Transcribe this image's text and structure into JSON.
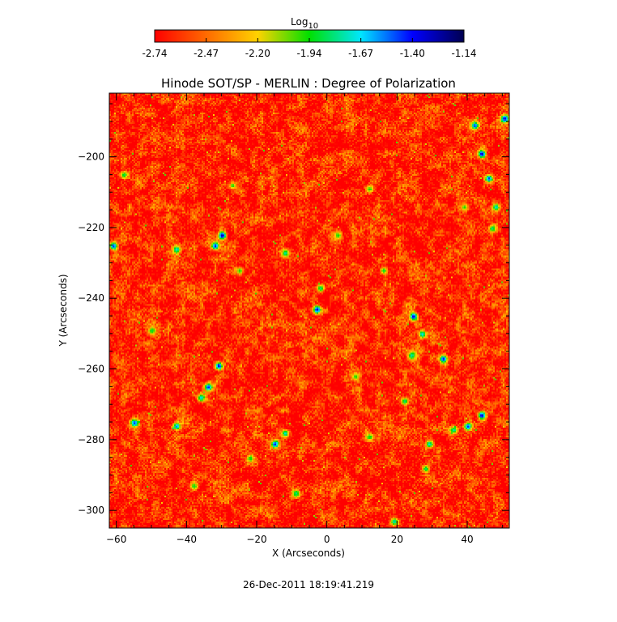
{
  "chart_data": {
    "type": "heatmap",
    "title": "Hinode SOT/SP - MERLIN : Degree of Polarization",
    "xlabel": "X (Arcseconds)",
    "ylabel": "Y (Arcseconds)",
    "xlim": [
      -62,
      52
    ],
    "ylim": [
      -305,
      -182
    ],
    "x_ticks": [
      -60,
      -40,
      -20,
      0,
      20,
      40
    ],
    "y_ticks": [
      -200,
      -220,
      -240,
      -260,
      -280,
      -300
    ],
    "colorbar": {
      "label_main": "Log",
      "label_sub": "10",
      "range": [
        -2.74,
        -1.14
      ],
      "tick_values": [
        "-2.74",
        "-2.47",
        "-2.20",
        "-1.94",
        "-1.67",
        "-1.40",
        "-1.14"
      ],
      "colormap": [
        "#ff0000",
        "#ff6a00",
        "#ffd200",
        "#00e000",
        "#00e6ff",
        "#0000ff",
        "#000050"
      ]
    },
    "background_value": -2.65,
    "features": [
      {
        "x": 50.5,
        "y": -189,
        "value": -1.35
      },
      {
        "x": 42,
        "y": -191,
        "value": -1.45
      },
      {
        "x": 44,
        "y": -199,
        "value": -1.3
      },
      {
        "x": 46,
        "y": -206,
        "value": -1.45
      },
      {
        "x": 48,
        "y": -214,
        "value": -1.7
      },
      {
        "x": 47,
        "y": -220,
        "value": -1.8
      },
      {
        "x": -30,
        "y": -222,
        "value": -1.25
      },
      {
        "x": -32,
        "y": -225,
        "value": -1.4
      },
      {
        "x": -61,
        "y": -225,
        "value": -1.45
      },
      {
        "x": -43,
        "y": -226,
        "value": -1.7
      },
      {
        "x": -12,
        "y": -227,
        "value": -1.75
      },
      {
        "x": -2,
        "y": -237,
        "value": -1.8
      },
      {
        "x": -3,
        "y": -243,
        "value": -1.35
      },
      {
        "x": 24.5,
        "y": -245,
        "value": -1.35
      },
      {
        "x": 27,
        "y": -250,
        "value": -1.65
      },
      {
        "x": 33,
        "y": -257,
        "value": -1.4
      },
      {
        "x": 24,
        "y": -256,
        "value": -1.75
      },
      {
        "x": -31,
        "y": -259,
        "value": -1.35
      },
      {
        "x": -34,
        "y": -265,
        "value": -1.4
      },
      {
        "x": -36,
        "y": -268,
        "value": -1.7
      },
      {
        "x": 44,
        "y": -273,
        "value": -1.3
      },
      {
        "x": 40,
        "y": -276,
        "value": -1.45
      },
      {
        "x": 36,
        "y": -277,
        "value": -1.75
      },
      {
        "x": -55,
        "y": -275,
        "value": -1.45
      },
      {
        "x": -43,
        "y": -276,
        "value": -1.55
      },
      {
        "x": -15,
        "y": -281,
        "value": -1.4
      },
      {
        "x": -12,
        "y": -278,
        "value": -1.7
      },
      {
        "x": -22,
        "y": -285,
        "value": -1.9
      },
      {
        "x": 29,
        "y": -281,
        "value": -1.7
      },
      {
        "x": 28,
        "y": -288,
        "value": -1.85
      },
      {
        "x": 22,
        "y": -269,
        "value": -1.8
      },
      {
        "x": 12,
        "y": -279,
        "value": -1.9
      },
      {
        "x": -38,
        "y": -293,
        "value": -1.9
      },
      {
        "x": -9,
        "y": -295,
        "value": -1.8
      },
      {
        "x": 19,
        "y": -303,
        "value": -1.75
      },
      {
        "x": -58,
        "y": -205,
        "value": -1.85
      },
      {
        "x": -27,
        "y": -208,
        "value": -1.95
      },
      {
        "x": 12,
        "y": -209,
        "value": -1.95
      },
      {
        "x": 39,
        "y": -214,
        "value": -1.95
      },
      {
        "x": 3,
        "y": -222,
        "value": -1.95
      },
      {
        "x": 16,
        "y": -232,
        "value": -1.9
      },
      {
        "x": -50,
        "y": -249,
        "value": -1.9
      },
      {
        "x": 8,
        "y": -262,
        "value": -1.95
      },
      {
        "x": -25,
        "y": -232,
        "value": -1.95
      }
    ]
  },
  "timestamp": "26-Dec-2011 18:19:41.219"
}
